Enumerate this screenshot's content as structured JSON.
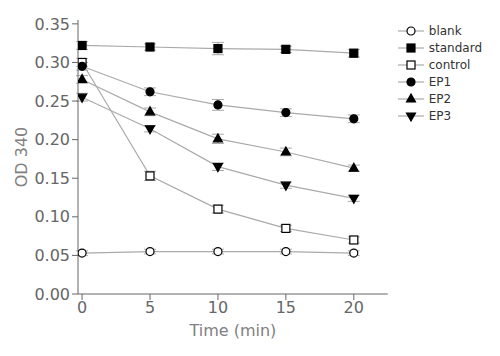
{
  "chart_data": {
    "type": "line",
    "xlabel": "Time (min)",
    "ylabel": "OD 340",
    "x": [
      0,
      5,
      10,
      15,
      20
    ],
    "series": [
      {
        "name": "blank",
        "color": "#aaaaaa",
        "marker": "open-circle",
        "values": [
          0.053,
          0.055,
          0.055,
          0.055,
          0.053
        ],
        "errors": [
          0.003,
          0.003,
          0.003,
          0.003,
          0.003
        ]
      },
      {
        "name": "standard",
        "color": "#aaaaaa",
        "marker": "square",
        "values": [
          0.322,
          0.32,
          0.318,
          0.317,
          0.312
        ],
        "errors": [
          0.005,
          0.004,
          0.008,
          0.004,
          0.005
        ]
      },
      {
        "name": "control",
        "color": "#aaaaaa",
        "marker": "open-square",
        "values": [
          0.3,
          0.153,
          0.11,
          0.085,
          0.07
        ],
        "errors": [
          0.005,
          0.006,
          0.005,
          0.004,
          0.004
        ]
      },
      {
        "name": "EP1",
        "color": "#aaaaaa",
        "marker": "circle",
        "values": [
          0.295,
          0.262,
          0.245,
          0.235,
          0.227
        ],
        "errors": [
          0.005,
          0.005,
          0.007,
          0.005,
          0.005
        ]
      },
      {
        "name": "EP2",
        "color": "#aaaaaa",
        "marker": "triangle-up",
        "values": [
          0.278,
          0.236,
          0.201,
          0.184,
          0.163
        ],
        "errors": [
          0.005,
          0.005,
          0.006,
          0.005,
          0.004
        ]
      },
      {
        "name": "EP3",
        "color": "#aaaaaa",
        "marker": "triangle-down",
        "values": [
          0.255,
          0.214,
          0.165,
          0.141,
          0.124
        ],
        "errors": [
          0.005,
          0.004,
          0.005,
          0.004,
          0.004
        ]
      }
    ],
    "xlim": [
      -0.3,
      22.5
    ],
    "ylim": [
      0,
      0.355
    ],
    "xticks": [
      0,
      5,
      10,
      15,
      20
    ],
    "yticks": [
      {
        "value": 0,
        "label": "0.00"
      },
      0.05,
      {
        "value": 0.1,
        "label": "0.10"
      },
      0.15,
      {
        "value": 0.2,
        "label": "0.20"
      },
      0.25,
      {
        "value": 0.3,
        "label": "0.30"
      },
      0.35
    ],
    "grid": false,
    "legend": "upper right"
  }
}
